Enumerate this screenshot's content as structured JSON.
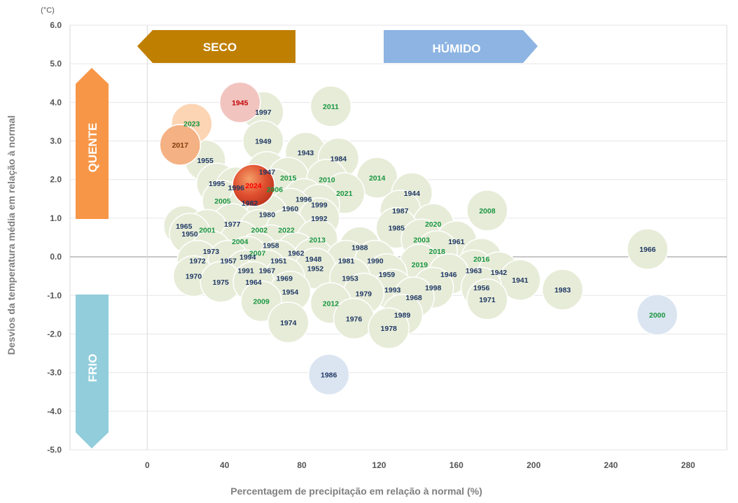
{
  "chart_data": {
    "type": "scatter",
    "xlabel": "Percentagem de precipitação em relação à normal (%)",
    "ylabel": "Desvios da temperatura média em relação à normal",
    "y_unit": "(°C)",
    "xlim": [
      -40,
      300
    ],
    "ylim": [
      -5,
      6
    ],
    "x_ticks": [
      0,
      40,
      80,
      120,
      160,
      200,
      240,
      280
    ],
    "y_ticks": [
      "6.0",
      "5.0",
      "4.0",
      "3.0",
      "2.0",
      "1.0",
      "0.0",
      "-1.0",
      "-2.0",
      "-3.0",
      "-4.0",
      "-5.0"
    ],
    "grid": "horizontal",
    "quadrant_labels": {
      "dry": "SECO",
      "wet": "HÚMIDO",
      "warm": "QUENTE",
      "cold": "FRIO"
    },
    "colors": {
      "bubble": "#e7ecd8",
      "bubble_stroke": "#ffffff",
      "label_default": "#1f3864",
      "label_recent": "#1a9641",
      "dry_arrow": "#bf7f00",
      "wet_arrow": "#8db4e2",
      "warm_arrow": "#f79646",
      "cold_arrow": "#92cddc",
      "highlight_2024": "#e0321f",
      "highlight_1945": "#f2c4c0",
      "highlight_2023": "#fcd5b4",
      "highlight_2017": "#f4b183",
      "highlight_1986": "#dbe5f1",
      "highlight_2000": "#dbe5f1"
    },
    "points": [
      {
        "year": "1945",
        "x": 48,
        "y": 4.0
      },
      {
        "year": "1997",
        "x": 60,
        "y": 3.75
      },
      {
        "year": "2011",
        "x": 95,
        "y": 3.9
      },
      {
        "year": "2023",
        "x": 23,
        "y": 3.45
      },
      {
        "year": "2017",
        "x": 17,
        "y": 2.9
      },
      {
        "year": "1949",
        "x": 60,
        "y": 3.0
      },
      {
        "year": "1943",
        "x": 82,
        "y": 2.7
      },
      {
        "year": "1984",
        "x": 99,
        "y": 2.55
      },
      {
        "year": "1955",
        "x": 30,
        "y": 2.5
      },
      {
        "year": "1947",
        "x": 62,
        "y": 2.2
      },
      {
        "year": "2015",
        "x": 73,
        "y": 2.05
      },
      {
        "year": "2010",
        "x": 93,
        "y": 2.0
      },
      {
        "year": "2014",
        "x": 119,
        "y": 2.05
      },
      {
        "year": "1995",
        "x": 36,
        "y": 1.9
      },
      {
        "year": "2024",
        "x": 55,
        "y": 1.85
      },
      {
        "year": "2006",
        "x": 66,
        "y": 1.75
      },
      {
        "year": "2021",
        "x": 102,
        "y": 1.65
      },
      {
        "year": "1944",
        "x": 137,
        "y": 1.65
      },
      {
        "year": "1996",
        "x": 46,
        "y": 1.8
      },
      {
        "year": "1996",
        "x": 81,
        "y": 1.5
      },
      {
        "year": "2005",
        "x": 39,
        "y": 1.45
      },
      {
        "year": "1982",
        "x": 53,
        "y": 1.4
      },
      {
        "year": "1999",
        "x": 89,
        "y": 1.35
      },
      {
        "year": "1960",
        "x": 74,
        "y": 1.25
      },
      {
        "year": "1980",
        "x": 62,
        "y": 1.1
      },
      {
        "year": "2008",
        "x": 176,
        "y": 1.2
      },
      {
        "year": "1987",
        "x": 131,
        "y": 1.2
      },
      {
        "year": "1992",
        "x": 89,
        "y": 1.0
      },
      {
        "year": "1965",
        "x": 19,
        "y": 0.8
      },
      {
        "year": "1977",
        "x": 44,
        "y": 0.85
      },
      {
        "year": "2020",
        "x": 148,
        "y": 0.85
      },
      {
        "year": "1985",
        "x": 129,
        "y": 0.75
      },
      {
        "year": "2001",
        "x": 31,
        "y": 0.7
      },
      {
        "year": "2002",
        "x": 58,
        "y": 0.7
      },
      {
        "year": "2022",
        "x": 72,
        "y": 0.7
      },
      {
        "year": "1950",
        "x": 22,
        "y": 0.6
      },
      {
        "year": "2003",
        "x": 142,
        "y": 0.45
      },
      {
        "year": "1961",
        "x": 160,
        "y": 0.4
      },
      {
        "year": "2004",
        "x": 48,
        "y": 0.4
      },
      {
        "year": "2013",
        "x": 88,
        "y": 0.45
      },
      {
        "year": "1958",
        "x": 64,
        "y": 0.3
      },
      {
        "year": "1988",
        "x": 110,
        "y": 0.25
      },
      {
        "year": "1973",
        "x": 33,
        "y": 0.15
      },
      {
        "year": "2007",
        "x": 57,
        "y": 0.1
      },
      {
        "year": "2018",
        "x": 150,
        "y": 0.15
      },
      {
        "year": "1962",
        "x": 77,
        "y": 0.1
      },
      {
        "year": "1994",
        "x": 52,
        "y": 0.0
      },
      {
        "year": "1948",
        "x": 86,
        "y": -0.05
      },
      {
        "year": "1951",
        "x": 68,
        "y": -0.1
      },
      {
        "year": "1981",
        "x": 103,
        "y": -0.1
      },
      {
        "year": "1990",
        "x": 118,
        "y": -0.1
      },
      {
        "year": "2016",
        "x": 173,
        "y": -0.05
      },
      {
        "year": "1972",
        "x": 26,
        "y": -0.1
      },
      {
        "year": "1957",
        "x": 42,
        "y": -0.1
      },
      {
        "year": "1966",
        "x": 259,
        "y": 0.2
      },
      {
        "year": "2019",
        "x": 141,
        "y": -0.2
      },
      {
        "year": "1991",
        "x": 51,
        "y": -0.35
      },
      {
        "year": "1967",
        "x": 62,
        "y": -0.35
      },
      {
        "year": "1952",
        "x": 87,
        "y": -0.3
      },
      {
        "year": "1963",
        "x": 169,
        "y": -0.35
      },
      {
        "year": "1942",
        "x": 182,
        "y": -0.4
      },
      {
        "year": "1959",
        "x": 124,
        "y": -0.45
      },
      {
        "year": "1946",
        "x": 156,
        "y": -0.45
      },
      {
        "year": "1970",
        "x": 24,
        "y": -0.5
      },
      {
        "year": "1969",
        "x": 71,
        "y": -0.55
      },
      {
        "year": "1953",
        "x": 105,
        "y": -0.55
      },
      {
        "year": "1941",
        "x": 193,
        "y": -0.6
      },
      {
        "year": "1975",
        "x": 38,
        "y": -0.65
      },
      {
        "year": "1964",
        "x": 55,
        "y": -0.65
      },
      {
        "year": "1998",
        "x": 148,
        "y": -0.8
      },
      {
        "year": "1956",
        "x": 173,
        "y": -0.8
      },
      {
        "year": "1983",
        "x": 215,
        "y": -0.85
      },
      {
        "year": "1993",
        "x": 127,
        "y": -0.85
      },
      {
        "year": "1954",
        "x": 74,
        "y": -0.9
      },
      {
        "year": "1979",
        "x": 112,
        "y": -0.95
      },
      {
        "year": "1968",
        "x": 138,
        "y": -1.05
      },
      {
        "year": "1971",
        "x": 176,
        "y": -1.1
      },
      {
        "year": "2009",
        "x": 59,
        "y": -1.15
      },
      {
        "year": "2012",
        "x": 95,
        "y": -1.2
      },
      {
        "year": "2000",
        "x": 264,
        "y": -1.5
      },
      {
        "year": "1989",
        "x": 132,
        "y": -1.5
      },
      {
        "year": "1976",
        "x": 107,
        "y": -1.6
      },
      {
        "year": "1974",
        "x": 73,
        "y": -1.7
      },
      {
        "year": "1978",
        "x": 125,
        "y": -1.85
      },
      {
        "year": "1986",
        "x": 94,
        "y": -3.05
      }
    ]
  }
}
